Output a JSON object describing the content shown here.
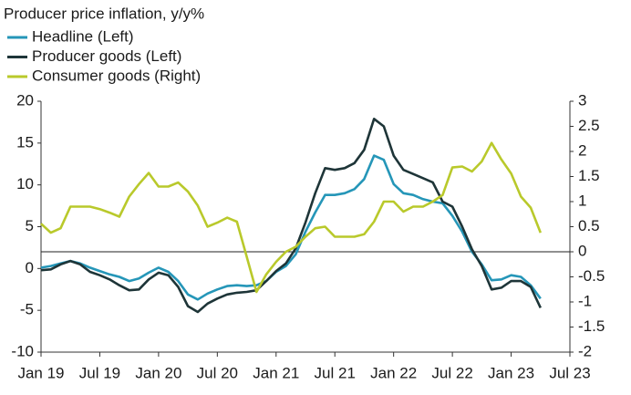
{
  "chart_data": {
    "type": "line",
    "title": "Producer price inflation, y/y%",
    "categories": [
      "Jan 19",
      null,
      null,
      null,
      null,
      null,
      "Jul 19",
      null,
      null,
      null,
      null,
      null,
      "Jan 20",
      null,
      null,
      null,
      null,
      null,
      "Jul 20",
      null,
      null,
      null,
      null,
      null,
      "Jan 21",
      null,
      null,
      null,
      null,
      null,
      "Jul 21",
      null,
      null,
      null,
      null,
      null,
      "Jan 22",
      null,
      null,
      null,
      null,
      null,
      "Jul 22",
      null,
      null,
      null,
      null,
      null,
      "Jan 23",
      null,
      null,
      null,
      null,
      null,
      "Jul 23"
    ],
    "series": [
      {
        "name": "Headline (Left)",
        "color": "#2596b8",
        "axis": "y",
        "values": [
          0.1,
          0.3,
          0.6,
          0.9,
          0.6,
          0.1,
          -0.3,
          -0.7,
          -1.0,
          -1.5,
          -1.2,
          -0.5,
          0.1,
          -0.4,
          -1.5,
          -3.1,
          -3.7,
          -3.0,
          -2.5,
          -2.1,
          -2.0,
          -2.1,
          -2.0,
          -1.5,
          -0.4,
          0.3,
          1.7,
          4.4,
          6.7,
          8.8,
          8.8,
          9.0,
          9.5,
          10.7,
          13.5,
          13.0,
          10.1,
          9.0,
          8.8,
          8.3,
          8.0,
          7.8,
          6.3,
          4.4,
          2.0,
          0.5,
          -1.4,
          -1.3,
          -0.8,
          -1.0,
          -2.0,
          -3.6,
          null,
          null,
          null
        ]
      },
      {
        "name": "Producer goods (Left)",
        "color": "#1e3538",
        "axis": "y",
        "values": [
          -0.2,
          -0.1,
          0.5,
          0.9,
          0.5,
          -0.4,
          -0.8,
          -1.3,
          -2.0,
          -2.6,
          -2.5,
          -1.3,
          -0.5,
          -0.8,
          -2.2,
          -4.5,
          -5.2,
          -4.2,
          -3.6,
          -3.1,
          -2.9,
          -2.8,
          -2.6,
          -1.5,
          -0.3,
          0.6,
          2.4,
          5.5,
          9.0,
          12.0,
          11.8,
          12.0,
          12.6,
          14.2,
          17.9,
          17.0,
          13.5,
          11.8,
          11.3,
          10.8,
          10.3,
          8.0,
          7.4,
          5.0,
          2.3,
          0.3,
          -2.5,
          -2.3,
          -1.5,
          -1.5,
          -2.2,
          -4.7,
          null,
          null,
          null
        ]
      },
      {
        "name": "Consumer goods (Right)",
        "color": "#b9c92b",
        "axis": "y2",
        "values": [
          0.56,
          0.38,
          0.47,
          0.9,
          0.9,
          0.9,
          0.85,
          0.78,
          0.7,
          1.1,
          1.35,
          1.57,
          1.3,
          1.3,
          1.38,
          1.2,
          0.92,
          0.5,
          0.58,
          0.68,
          0.6,
          -0.1,
          -0.8,
          -0.45,
          -0.2,
          0.0,
          0.1,
          0.3,
          0.47,
          0.5,
          0.3,
          0.3,
          0.3,
          0.35,
          0.6,
          1.0,
          1.0,
          0.8,
          0.9,
          0.9,
          1.0,
          1.13,
          1.68,
          1.7,
          1.6,
          1.8,
          2.17,
          1.84,
          1.56,
          1.1,
          0.88,
          0.38,
          null,
          null,
          null
        ]
      }
    ],
    "ylim": [
      -10,
      20
    ],
    "yticks": [
      -10,
      -5,
      0,
      5,
      10,
      15,
      20
    ],
    "y2lim": [
      -2,
      3
    ],
    "y2ticks": [
      -2,
      -1.5,
      -1,
      -0.5,
      0,
      0.5,
      1,
      1.5,
      2,
      2.5,
      3
    ],
    "grid": false
  }
}
